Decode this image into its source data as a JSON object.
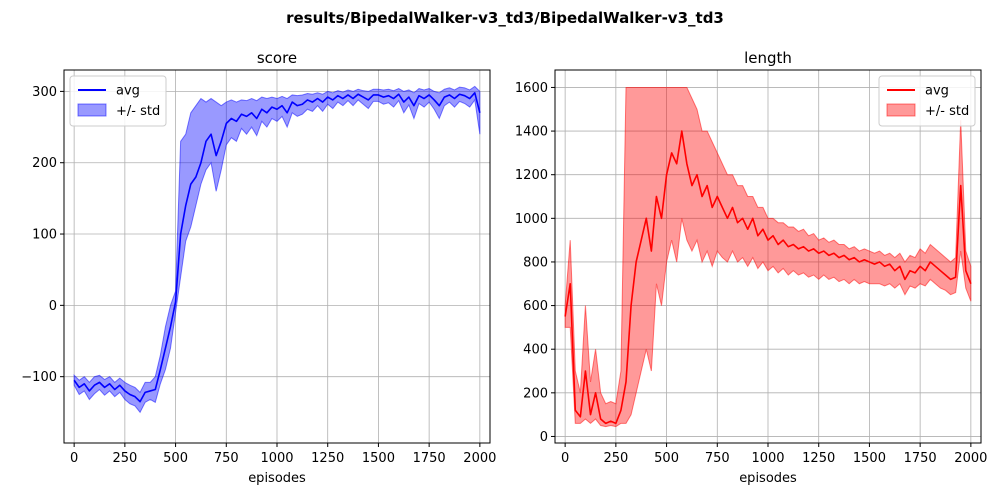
{
  "figure": {
    "suptitle": "results/BipedalWalker-v3_td3/BipedalWalker-v3_td3"
  },
  "chart_data": [
    {
      "type": "line",
      "title": "score",
      "xlabel": "episodes",
      "ylabel": "",
      "xlim": [
        -50,
        2050
      ],
      "ylim": [
        -193,
        330
      ],
      "xticks": [
        0,
        250,
        500,
        750,
        1000,
        1250,
        1500,
        1750,
        2000
      ],
      "yticks": [
        -100,
        0,
        100,
        200,
        300
      ],
      "grid": true,
      "legend": {
        "placement": "top-left",
        "entries": [
          "avg",
          "+/- std"
        ]
      },
      "colors": {
        "line": "#0000ff",
        "band": "#0000ff"
      },
      "series": [
        {
          "name": "avg",
          "x": [
            0,
            25,
            50,
            75,
            100,
            125,
            150,
            175,
            200,
            225,
            250,
            275,
            300,
            325,
            350,
            375,
            400,
            425,
            450,
            475,
            500,
            525,
            550,
            575,
            600,
            625,
            650,
            675,
            700,
            725,
            750,
            775,
            800,
            825,
            850,
            875,
            900,
            925,
            950,
            975,
            1000,
            1025,
            1050,
            1075,
            1100,
            1125,
            1150,
            1175,
            1200,
            1225,
            1250,
            1275,
            1300,
            1325,
            1350,
            1375,
            1400,
            1425,
            1450,
            1475,
            1500,
            1525,
            1550,
            1575,
            1600,
            1625,
            1650,
            1675,
            1700,
            1725,
            1750,
            1775,
            1800,
            1825,
            1850,
            1875,
            1900,
            1925,
            1950,
            1975,
            2000
          ],
          "y": [
            -105,
            -115,
            -110,
            -120,
            -112,
            -108,
            -115,
            -110,
            -118,
            -112,
            -120,
            -125,
            -128,
            -135,
            -122,
            -120,
            -118,
            -90,
            -60,
            -30,
            5,
            100,
            140,
            170,
            180,
            200,
            230,
            240,
            210,
            230,
            255,
            262,
            258,
            268,
            265,
            270,
            262,
            275,
            270,
            278,
            275,
            280,
            270,
            285,
            280,
            282,
            288,
            285,
            290,
            285,
            292,
            288,
            294,
            290,
            295,
            290,
            296,
            292,
            288,
            295,
            295,
            292,
            294,
            290,
            296,
            285,
            292,
            280,
            294,
            290,
            295,
            288,
            280,
            292,
            295,
            290,
            296,
            294,
            290,
            298,
            270
          ]
        },
        {
          "name": "+/- std",
          "upper": [
            -98,
            -105,
            -100,
            -108,
            -100,
            -98,
            -104,
            -100,
            -108,
            -102,
            -108,
            -112,
            -115,
            -122,
            -108,
            -108,
            -100,
            -70,
            -30,
            0,
            20,
            230,
            240,
            270,
            280,
            290,
            285,
            290,
            285,
            280,
            285,
            288,
            285,
            288,
            287,
            290,
            287,
            292,
            290,
            292,
            290,
            293,
            290,
            295,
            294,
            295,
            297,
            296,
            298,
            296,
            300,
            298,
            301,
            299,
            302,
            300,
            303,
            301,
            300,
            303,
            303,
            302,
            303,
            301,
            304,
            300,
            302,
            298,
            304,
            302,
            304,
            300,
            298,
            303,
            305,
            302,
            306,
            305,
            302,
            307,
            300
          ],
          "lower": [
            -112,
            -125,
            -120,
            -132,
            -124,
            -118,
            -126,
            -120,
            -128,
            -122,
            -132,
            -138,
            -141,
            -150,
            -136,
            -132,
            -136,
            -110,
            -90,
            -60,
            -10,
            40,
            90,
            110,
            140,
            170,
            190,
            200,
            160,
            190,
            225,
            235,
            230,
            248,
            240,
            250,
            238,
            258,
            250,
            262,
            258,
            265,
            250,
            270,
            265,
            268,
            275,
            272,
            280,
            272,
            282,
            276,
            285,
            280,
            287,
            280,
            288,
            282,
            276,
            286,
            286,
            282,
            284,
            278,
            287,
            270,
            281,
            262,
            283,
            278,
            285,
            275,
            262,
            280,
            285,
            278,
            286,
            283,
            278,
            288,
            240
          ]
        }
      ]
    },
    {
      "type": "line",
      "title": "length",
      "xlabel": "episodes",
      "ylabel": "",
      "xlim": [
        -50,
        2050
      ],
      "ylim": [
        -30,
        1680
      ],
      "xticks": [
        0,
        250,
        500,
        750,
        1000,
        1250,
        1500,
        1750,
        2000
      ],
      "yticks": [
        0,
        200,
        400,
        600,
        800,
        1000,
        1200,
        1400,
        1600
      ],
      "grid": true,
      "legend": {
        "placement": "top-right",
        "entries": [
          "avg",
          "+/- std"
        ]
      },
      "colors": {
        "line": "#ff0000",
        "band": "#ff0000"
      },
      "series": [
        {
          "name": "avg",
          "x": [
            0,
            25,
            50,
            75,
            100,
            125,
            150,
            175,
            200,
            225,
            250,
            275,
            300,
            325,
            350,
            375,
            400,
            425,
            450,
            475,
            500,
            525,
            550,
            575,
            600,
            625,
            650,
            675,
            700,
            725,
            750,
            775,
            800,
            825,
            850,
            875,
            900,
            925,
            950,
            975,
            1000,
            1025,
            1050,
            1075,
            1100,
            1125,
            1150,
            1175,
            1200,
            1225,
            1250,
            1275,
            1300,
            1325,
            1350,
            1375,
            1400,
            1425,
            1450,
            1475,
            1500,
            1525,
            1550,
            1575,
            1600,
            1625,
            1650,
            1675,
            1700,
            1725,
            1750,
            1775,
            1800,
            1825,
            1850,
            1875,
            1900,
            1925,
            1950,
            1975,
            2000
          ],
          "y": [
            550,
            700,
            120,
            90,
            300,
            100,
            200,
            80,
            60,
            70,
            60,
            120,
            250,
            600,
            800,
            900,
            1000,
            850,
            1100,
            1000,
            1200,
            1300,
            1250,
            1400,
            1250,
            1150,
            1200,
            1100,
            1150,
            1050,
            1100,
            1050,
            1000,
            1050,
            980,
            1000,
            950,
            1000,
            920,
            950,
            900,
            920,
            880,
            900,
            870,
            880,
            860,
            870,
            850,
            860,
            840,
            850,
            830,
            840,
            820,
            830,
            810,
            820,
            800,
            810,
            800,
            790,
            800,
            780,
            790,
            760,
            780,
            720,
            760,
            750,
            780,
            760,
            800,
            780,
            760,
            740,
            720,
            730,
            1150,
            760,
            700
          ]
        },
        {
          "name": "+/- std",
          "upper": [
            600,
            900,
            300,
            200,
            600,
            250,
            400,
            200,
            150,
            160,
            150,
            300,
            1600,
            1600,
            1600,
            1600,
            1600,
            1600,
            1600,
            1600,
            1600,
            1600,
            1600,
            1600,
            1600,
            1550,
            1500,
            1400,
            1400,
            1350,
            1300,
            1250,
            1200,
            1200,
            1150,
            1150,
            1100,
            1100,
            1050,
            1050,
            1000,
            1000,
            980,
            980,
            960,
            960,
            940,
            950,
            920,
            930,
            900,
            910,
            890,
            900,
            880,
            880,
            860,
            870,
            850,
            860,
            850,
            840,
            850,
            830,
            840,
            820,
            840,
            800,
            830,
            820,
            860,
            840,
            880,
            860,
            840,
            820,
            800,
            820,
            1450,
            850,
            780
          ],
          "lower": [
            500,
            500,
            60,
            60,
            80,
            60,
            80,
            50,
            45,
            50,
            45,
            60,
            60,
            100,
            200,
            300,
            400,
            300,
            700,
            600,
            800,
            900,
            800,
            1000,
            900,
            850,
            900,
            800,
            850,
            780,
            850,
            820,
            800,
            850,
            800,
            820,
            780,
            820,
            770,
            800,
            760,
            780,
            750,
            770,
            740,
            760,
            740,
            750,
            730,
            740,
            720,
            740,
            720,
            730,
            710,
            720,
            700,
            720,
            700,
            710,
            700,
            700,
            700,
            690,
            700,
            680,
            700,
            650,
            690,
            680,
            700,
            690,
            720,
            700,
            680,
            670,
            650,
            660,
            850,
            680,
            620
          ]
        }
      ]
    }
  ]
}
